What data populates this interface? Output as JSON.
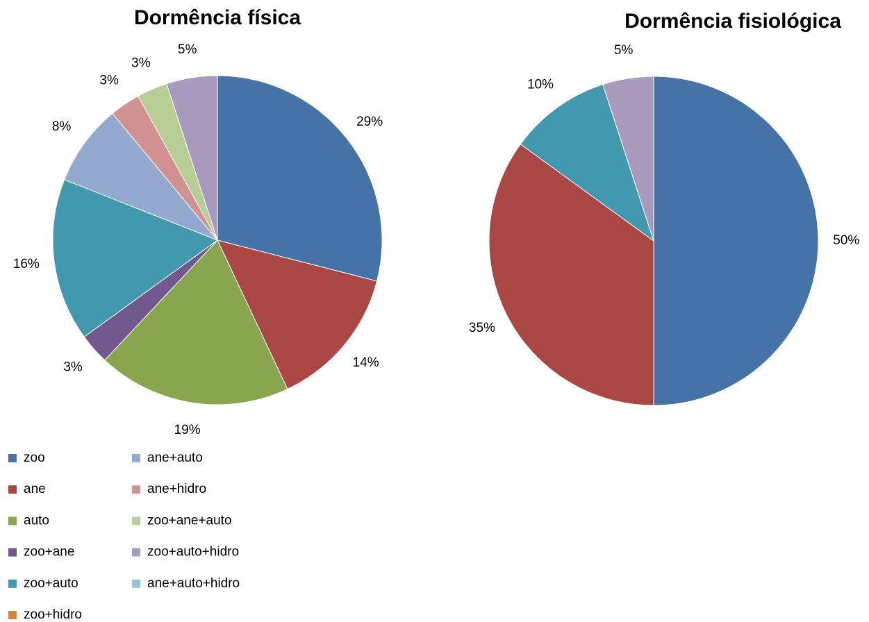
{
  "chart_data": [
    {
      "type": "pie",
      "title": "Dormência física",
      "categories": [
        "zoo",
        "ane",
        "auto",
        "zoo+ane",
        "zoo+auto",
        "zoo+hidro",
        "ane+auto",
        "ane+hidro",
        "zoo+ane+auto",
        "zoo+auto+hidro",
        "ane+auto+hidro"
      ],
      "values": [
        29,
        14,
        19,
        3,
        16,
        null,
        8,
        3,
        3,
        5,
        null
      ],
      "colors": [
        "#4572a7",
        "#aa4643",
        "#89a54e",
        "#71588f",
        "#4198af",
        "#db843d",
        "#93a9cf",
        "#d19392",
        "#b9cd96",
        "#a99bbd",
        "#92c5d8"
      ],
      "legend": "bottom-left"
    },
    {
      "type": "pie",
      "title": "Dormência fisiológica",
      "categories": [
        "zoo",
        "ane",
        "auto",
        "zoo+ane",
        "zoo+auto",
        "zoo+hidro",
        "ane+auto",
        "ane+hidro",
        "zoo+ane+auto",
        "zoo+auto+hidro",
        "ane+auto+hidro"
      ],
      "values": [
        50,
        35,
        null,
        null,
        10,
        null,
        null,
        null,
        null,
        5,
        null
      ],
      "colors": [
        "#4572a7",
        "#aa4643",
        "#89a54e",
        "#71588f",
        "#4198af",
        "#db843d",
        "#93a9cf",
        "#d19392",
        "#b9cd96",
        "#a99bbd",
        "#92c5d8"
      ]
    }
  ]
}
